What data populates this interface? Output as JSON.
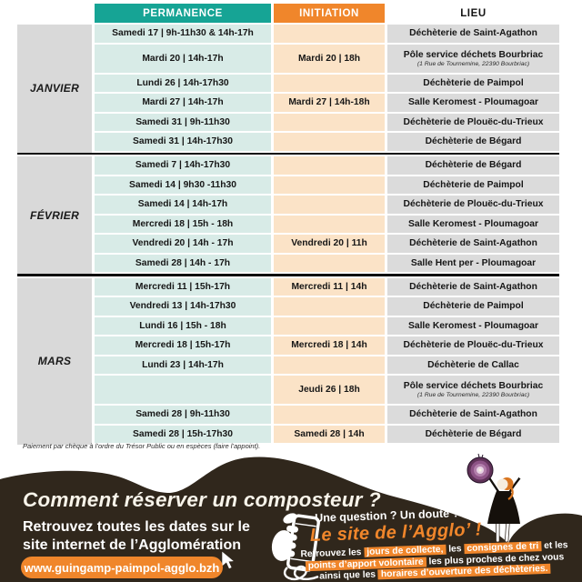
{
  "colors": {
    "teal": "#16A495",
    "teal_light": "#D8EBE7",
    "orange": "#F0862B",
    "orange_light": "#FBE3C7",
    "dark_brown": "#30271C"
  },
  "table": {
    "headers": {
      "permanence": "PERMANENCE",
      "initiation": "INITIATION",
      "lieu": "LIEU"
    },
    "months": [
      {
        "label": "JANVIER",
        "rows": [
          {
            "permanence": "Samedi 17 | 9h-11h30 & 14h-17h",
            "initiation": "",
            "lieu": "Déchèterie de Saint-Agathon"
          },
          {
            "permanence": "Mardi 20 | 14h-17h",
            "initiation": "Mardi 20 | 18h",
            "lieu": "Pôle service déchets Bourbriac",
            "lieu_sub": "(1 Rue de Tournemine, 22390 Bourbriac)"
          },
          {
            "permanence": "Lundi 26 | 14h-17h30",
            "initiation": "",
            "lieu": "Déchèterie de Paimpol"
          },
          {
            "permanence": "Mardi 27 | 14h-17h",
            "initiation": "Mardi 27 | 14h-18h",
            "lieu": "Salle Keromest - Ploumagoar"
          },
          {
            "permanence": "Samedi 31 | 9h-11h30",
            "initiation": "",
            "lieu": "Déchèterie de Plouëc-du-Trieux"
          },
          {
            "permanence": "Samedi 31 | 14h-17h30",
            "initiation": "",
            "lieu": "Déchèterie de Bégard"
          }
        ]
      },
      {
        "label": "FÉVRIER",
        "rows": [
          {
            "permanence": "Samedi 7 | 14h-17h30",
            "initiation": "",
            "lieu": "Déchèterie de Bégard"
          },
          {
            "permanence": "Samedi 14 | 9h30 -11h30",
            "initiation": "",
            "lieu": "Déchèterie de Paimpol"
          },
          {
            "permanence": "Samedi 14 | 14h-17h",
            "initiation": "",
            "lieu": "Déchèterie de Plouëc-du-Trieux"
          },
          {
            "permanence": "Mercredi 18 | 15h - 18h",
            "initiation": "",
            "lieu": "Salle Keromest - Ploumagoar"
          },
          {
            "permanence": "Vendredi 20 | 14h - 17h",
            "initiation": "Vendredi 20 | 11h",
            "lieu": "Déchèterie de Saint-Agathon"
          },
          {
            "permanence": "Samedi 28 | 14h - 17h",
            "initiation": "",
            "lieu": "Salle Hent per - Ploumagoar"
          }
        ]
      },
      {
        "label": "MARS",
        "rows": [
          {
            "permanence": "Mercredi 11 | 15h-17h",
            "initiation": "Mercredi 11 | 14h",
            "lieu": "Déchèterie de Saint-Agathon"
          },
          {
            "permanence": "Vendredi 13 | 14h-17h30",
            "initiation": "",
            "lieu": "Déchèterie de Paimpol"
          },
          {
            "permanence": "Lundi 16 | 15h - 18h",
            "initiation": "",
            "lieu": "Salle Keromest - Ploumagoar"
          },
          {
            "permanence": "Mercredi 18 | 15h-17h",
            "initiation": "Mercredi 18 | 14h",
            "lieu": "Déchèterie de Plouëc-du-Trieux"
          },
          {
            "permanence": "Lundi 23 | 14h-17h",
            "initiation": "",
            "lieu": "Déchèterie de Callac"
          },
          {
            "permanence": "",
            "initiation": "Jeudi 26 | 18h",
            "lieu": "Pôle service déchets Bourbriac",
            "lieu_sub": "(1 Rue de Tournemine, 22390 Bourbriac)"
          },
          {
            "permanence": "Samedi 28 | 9h-11h30",
            "initiation": "",
            "lieu": "Déchèterie de Saint-Agathon"
          },
          {
            "permanence": "Samedi 28 | 15h-17h30",
            "initiation": "Samedi 28 | 14h",
            "lieu": "Déchèterie de Bégard"
          }
        ]
      }
    ],
    "footnote": "Paiement par chèque à l’ordre du Trésor Public ou en espèces (faire l’appoint)."
  },
  "footer": {
    "title": "Comment réserver un composteur ?",
    "subtitle_line1": "Retrouvez toutes les dates sur le",
    "subtitle_line2": "site internet de l’Agglomération",
    "website": "www.guingamp-paimpol-agglo.bzh",
    "question": "Une question ? Un doute ?",
    "agglo": "Le site de l’Agglo’ !",
    "info": {
      "l1a": "Retrouvez les ",
      "l1b": "jours de collecte,",
      "l1c": " les ",
      "l1d": "consignes de tri",
      "l1e": " et les",
      "l2a": "points d’apport volontaire",
      "l2b": " les plus proches de chez vous",
      "l3a": "ainsi que les ",
      "l3b": "horaires d’ouverture des déchèteries."
    }
  }
}
